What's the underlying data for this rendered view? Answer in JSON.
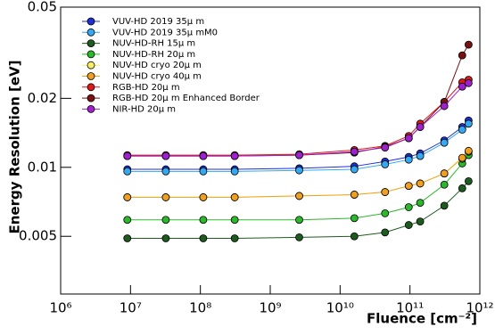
{
  "chart_data": {
    "type": "line",
    "x_label": "Fluence [cm⁻²]",
    "y_label": "Energy Resolution [eV]",
    "xscale": "log",
    "yscale": "log",
    "xlim": [
      1000000,
      1000000000000
    ],
    "ylim": [
      0.0028,
      0.05
    ],
    "xticks": [
      {
        "value": 1000000,
        "label": "10⁶"
      },
      {
        "value": 10000000,
        "label": "10⁷"
      },
      {
        "value": 100000000,
        "label": "10⁸"
      },
      {
        "value": 1000000000,
        "label": "10⁹"
      },
      {
        "value": 10000000000,
        "label": "10¹⁰"
      },
      {
        "value": 100000000000,
        "label": "10¹¹"
      },
      {
        "value": 1000000000000,
        "label": "10¹²"
      }
    ],
    "yticks": [
      0.005,
      0.01,
      0.02,
      0.05
    ],
    "legend": "upper left",
    "x": [
      9000000,
      32000000,
      110000000,
      310000000,
      2600000000,
      16000000000,
      44000000000,
      96000000000,
      140000000000,
      310000000000,
      560000000000,
      690000000000
    ],
    "series": [
      {
        "name": "VUV-HD 2019 35μ m",
        "color": "#1f2fd6",
        "values": [
          0.0098,
          0.0098,
          0.0098,
          0.0098,
          0.0099,
          0.0101,
          0.0106,
          0.0111,
          0.0115,
          0.0131,
          0.015,
          0.016
        ]
      },
      {
        "name": "VUV-HD 2019 35μ mM0",
        "color": "#34a8f0",
        "values": [
          0.0096,
          0.0096,
          0.0096,
          0.0096,
          0.0097,
          0.0098,
          0.0103,
          0.0108,
          0.0112,
          0.0128,
          0.0146,
          0.0155
        ]
      },
      {
        "name": "NUV-HD-RH 15μ m",
        "color": "#1e5b1e",
        "values": [
          0.0049,
          0.0049,
          0.0049,
          0.0049,
          0.00495,
          0.005,
          0.0052,
          0.0056,
          0.0058,
          0.0068,
          0.0081,
          0.0087
        ]
      },
      {
        "name": "NUV-HD-RH 20μ m",
        "color": "#2bb82b",
        "values": [
          0.0059,
          0.0059,
          0.0059,
          0.0059,
          0.0059,
          0.006,
          0.0063,
          0.0067,
          0.007,
          0.0084,
          0.0104,
          0.0113
        ]
      },
      {
        "name": "NUV-HD cryo 20μ m",
        "color": "#f5ee66",
        "values": [
          0.0074,
          0.0074,
          0.0074,
          0.0074,
          0.0075,
          0.0076,
          0.0078,
          0.0083,
          0.0085,
          0.0094,
          0.0109,
          0.0117
        ]
      },
      {
        "name": "NUV-HD cryo 40μ m",
        "color": "#f0a020",
        "values": [
          0.0074,
          0.0074,
          0.0074,
          0.0074,
          0.0075,
          0.0076,
          0.0078,
          0.0083,
          0.0085,
          0.0094,
          0.011,
          0.0118
        ]
      },
      {
        "name": "RGB-HD 20μ m",
        "color": "#e01818",
        "values": [
          0.0113,
          0.0113,
          0.0113,
          0.0113,
          0.0114,
          0.0119,
          0.0124,
          0.0137,
          0.0155,
          0.0193,
          0.0235,
          0.0241
        ]
      },
      {
        "name": "RGB-HD 20μ m Enhanced Border",
        "color": "#7a1010",
        "values": [
          0.0112,
          0.0112,
          0.0112,
          0.0112,
          0.0113,
          0.0116,
          0.0123,
          0.0134,
          0.015,
          0.0193,
          0.0308,
          0.0343
        ]
      },
      {
        "name": "NIR-HD 20μ m",
        "color": "#a020d0",
        "values": [
          0.0112,
          0.0112,
          0.0112,
          0.0112,
          0.0113,
          0.0117,
          0.0122,
          0.0134,
          0.015,
          0.0185,
          0.0225,
          0.0233
        ]
      }
    ]
  }
}
